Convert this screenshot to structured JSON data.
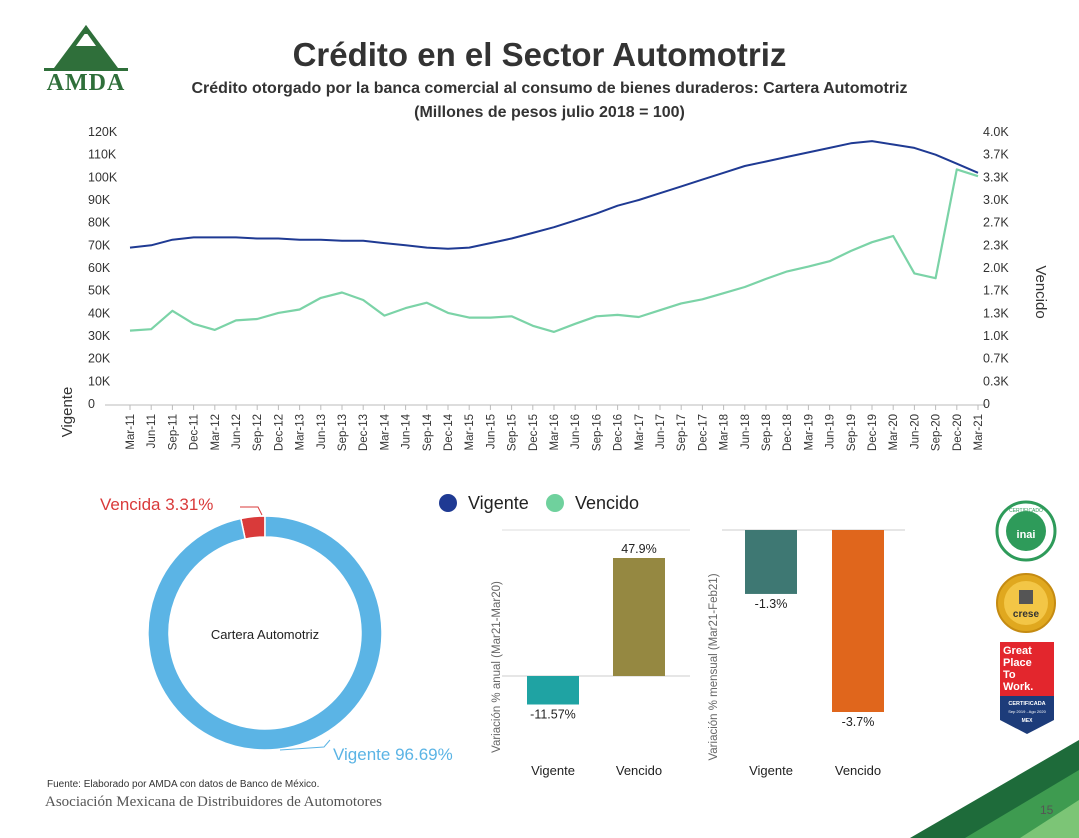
{
  "header": {
    "logo_text": "AMDA",
    "title": "Crédito en el Sector Automotriz",
    "subtitle_line1": "Crédito otorgado por la banca comercial al consumo de bienes duraderos: Cartera Automotriz",
    "subtitle_line2": "(Millones de pesos julio 2018 = 100)"
  },
  "footer": {
    "source": "Fuente: Elaborado por AMDA con datos de Banco de México.",
    "org": "Asociación Mexicana de Distribuidores de Automotores",
    "page_number": "15"
  },
  "badges": {
    "inai_text": "inai",
    "inai_arc": "CERTIFICADO",
    "crese_text": "crese",
    "gptw_lines": [
      "Great",
      "Place",
      "To",
      "Work."
    ],
    "gptw_cert": "CERTIFICADA",
    "gptw_period": "Sep 2019 - Ago 2020",
    "gptw_country": "MEX"
  },
  "colors": {
    "vigente_line": "#1f3a93",
    "vencido_line": "#7bd3a7",
    "vigente_legend": "#1f3a93",
    "vencido_legend": "#6fd19d",
    "donut_vigente": "#5bb4e5",
    "donut_vencida": "#d93a3a",
    "bar_anual_vigente": "#1fa3a3",
    "bar_anual_vencido": "#958841",
    "bar_mensual_vigente": "#3e7873",
    "bar_mensual_vencido": "#e0661c"
  },
  "chart_data": [
    {
      "type": "line",
      "ylabel_left": "Vigente",
      "ylabel_right": "Vencido",
      "y_left_ticks": [
        "0",
        "10K",
        "20K",
        "30K",
        "40K",
        "50K",
        "60K",
        "70K",
        "80K",
        "90K",
        "100K",
        "110K",
        "120K"
      ],
      "y_right_ticks": [
        "0",
        "0.3K",
        "0.7K",
        "1.0K",
        "1.3K",
        "1.7K",
        "2.0K",
        "2.3K",
        "2.7K",
        "3.0K",
        "3.3K",
        "3.7K",
        "4.0K"
      ],
      "ylim_left": [
        0,
        120000
      ],
      "ylim_right": [
        0,
        4000
      ],
      "x_tick_labels": [
        "Mar-11",
        "Jun-11",
        "Sep-11",
        "Dec-11",
        "Mar-12",
        "Jun-12",
        "Sep-12",
        "Dec-12",
        "Mar-13",
        "Jun-13",
        "Sep-13",
        "Dec-13",
        "Mar-14",
        "Jun-14",
        "Sep-14",
        "Dec-14",
        "Mar-15",
        "Jun-15",
        "Sep-15",
        "Dec-15",
        "Mar-16",
        "Jun-16",
        "Sep-16",
        "Dec-16",
        "Mar-17",
        "Jun-17",
        "Sep-17",
        "Dec-17",
        "Mar-18",
        "Jun-18",
        "Sep-18",
        "Dec-18",
        "Mar-19",
        "Jun-19",
        "Sep-19",
        "Dec-19",
        "Mar-20",
        "Jun-20",
        "Sep-20",
        "Dec-20",
        "Mar-21"
      ],
      "legend": "bottom",
      "series": [
        {
          "name": "Vigente",
          "axis": "left",
          "values": [
            69000,
            70000,
            72500,
            73500,
            73500,
            73500,
            73000,
            73000,
            72500,
            72500,
            72000,
            72000,
            71000,
            70000,
            69000,
            68500,
            69000,
            71000,
            73000,
            75500,
            78000,
            81000,
            84000,
            87500,
            90000,
            93000,
            96000,
            99000,
            102000,
            105000,
            107000,
            109000,
            111000,
            113000,
            115000,
            116000,
            114500,
            113000,
            110000,
            106000,
            102000
          ]
        },
        {
          "name": "Vencido",
          "axis": "right",
          "values": [
            1080,
            1100,
            1370,
            1180,
            1090,
            1230,
            1250,
            1340,
            1390,
            1560,
            1640,
            1530,
            1300,
            1410,
            1490,
            1340,
            1270,
            1270,
            1290,
            1150,
            1060,
            1180,
            1290,
            1310,
            1280,
            1380,
            1480,
            1540,
            1630,
            1720,
            1840,
            1950,
            2020,
            2100,
            2250,
            2380,
            2470,
            1920,
            1850,
            3450,
            3350
          ]
        }
      ]
    },
    {
      "type": "pie",
      "center_label": "Cartera Automotriz",
      "slices": [
        {
          "name": "Vigente",
          "value": 96.69,
          "label": "Vigente 96.69%"
        },
        {
          "name": "Vencida",
          "value": 3.31,
          "label": "Vencida 3.31%"
        }
      ]
    },
    {
      "type": "bar",
      "ylabel": "Variación % anual (Mar21-Mar20)",
      "categories": [
        "Vigente",
        "Vencido"
      ],
      "values": [
        -11.57,
        47.9
      ],
      "value_labels": [
        "-11.57%",
        "47.9%"
      ]
    },
    {
      "type": "bar",
      "ylabel": "Variación % mensual (Mar21-Feb21)",
      "categories": [
        "Vigente",
        "Vencido"
      ],
      "values": [
        -1.3,
        -3.7
      ],
      "value_labels": [
        "-1.3%",
        "-3.7%"
      ]
    }
  ]
}
